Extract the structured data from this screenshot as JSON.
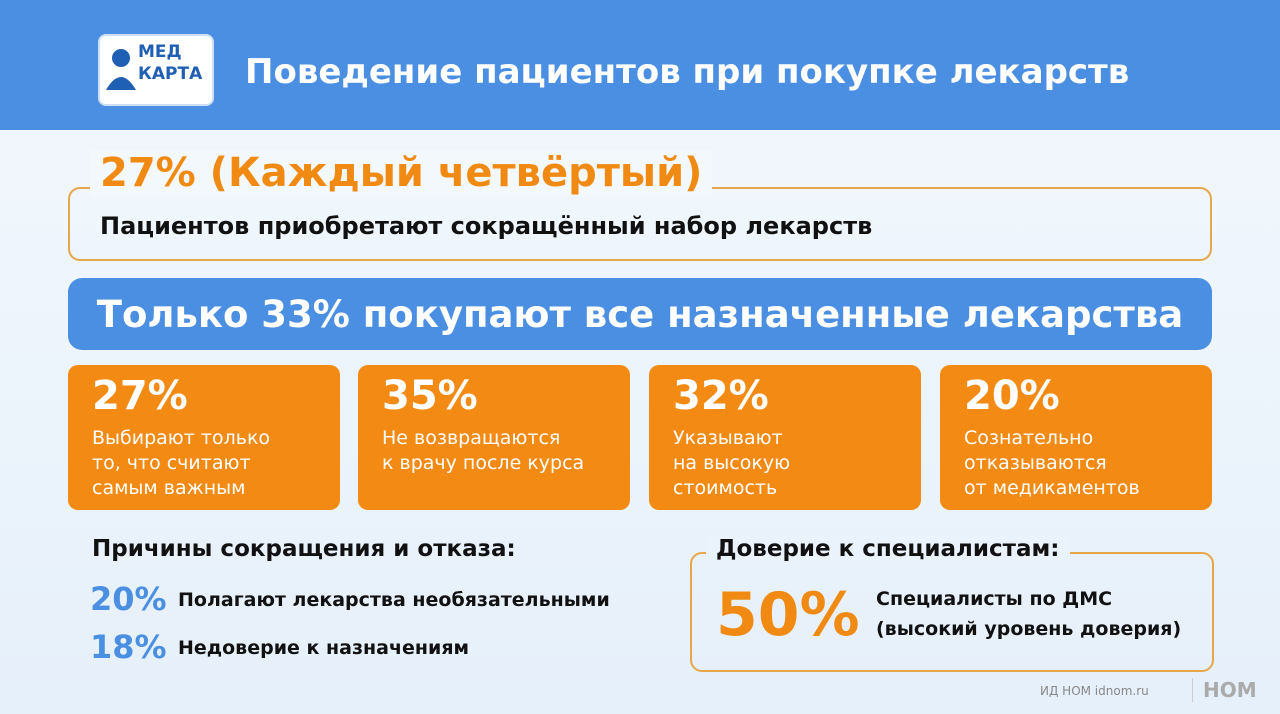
{
  "logo": {
    "line1": "МЕД",
    "line2": "КАРТА"
  },
  "header": {
    "title": "Поведение пациентов при покупке лекарств"
  },
  "highlight": {
    "headline": "27% (Каждый четвёртый)",
    "text": "Пациентов приобретают сокращённый набор лекарств"
  },
  "banner": {
    "text": "Только 33% покупают все назначенные лекарства"
  },
  "cards": [
    {
      "percent": "27%",
      "lines": [
        "Выбирают только",
        "то, что считают",
        "самым важным"
      ]
    },
    {
      "percent": "35%",
      "lines": [
        "Не возвращаются",
        "к врачу после курса"
      ]
    },
    {
      "percent": "32%",
      "lines": [
        "Указывают",
        "на высокую",
        "стоимость"
      ]
    },
    {
      "percent": "20%",
      "lines": [
        "Сознательно",
        "отказываются",
        "от медикаментов"
      ]
    }
  ],
  "reasons": {
    "title": "Причины сокращения и отказа:",
    "items": [
      {
        "percent": "20%",
        "text": "Полагают лекарства необязательными"
      },
      {
        "percent": "18%",
        "text": "Недоверие к назначениям"
      }
    ]
  },
  "trust": {
    "title": "Доверие к специалистам:",
    "percent": "50%",
    "lines": [
      "Специалисты по ДМС",
      "(высокий уровень доверия)"
    ]
  },
  "footer": {
    "source": "ИД НОМ idnom.ru",
    "brand": "НОМ"
  }
}
